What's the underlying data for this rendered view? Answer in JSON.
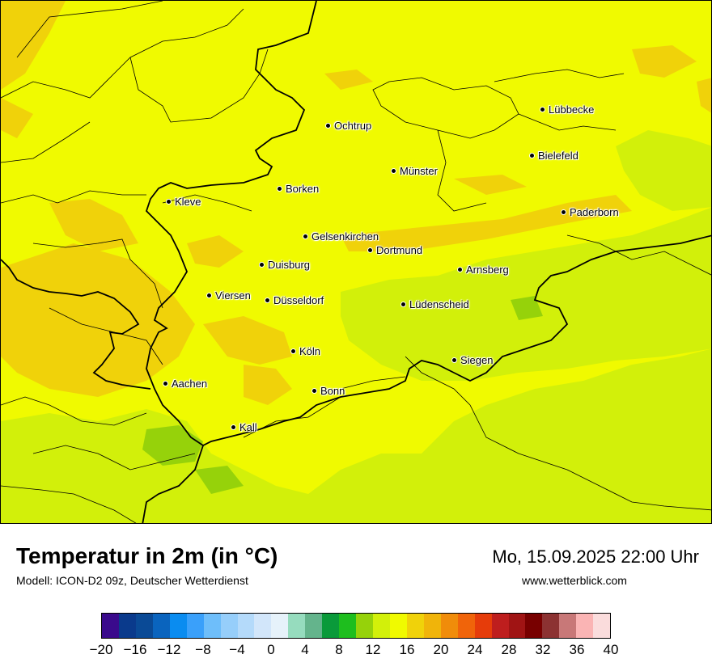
{
  "map": {
    "cities": [
      {
        "name": "Lübbecke"
      },
      {
        "name": "Ochtrup"
      },
      {
        "name": "Bielefeld"
      },
      {
        "name": "Münster"
      },
      {
        "name": "Borken"
      },
      {
        "name": "Kleve"
      },
      {
        "name": "Paderborn"
      },
      {
        "name": "Gelsenkirchen"
      },
      {
        "name": "Dortmund"
      },
      {
        "name": "Duisburg"
      },
      {
        "name": "Arnsberg"
      },
      {
        "name": "Viersen"
      },
      {
        "name": "Düsseldorf"
      },
      {
        "name": "Lüdenscheid"
      },
      {
        "name": "Köln"
      },
      {
        "name": "Siegen"
      },
      {
        "name": "Aachen"
      },
      {
        "name": "Bonn"
      },
      {
        "name": "Kall"
      }
    ]
  },
  "footer": {
    "title": "Temperatur in 2m (in °C)",
    "subtitle": "Modell: ICON-D2 09z, Deutscher Wetterdienst",
    "datetime": "Mo, 15.09.2025 22:00 Uhr",
    "url": "www.wetterblick.com"
  },
  "legend": {
    "colors": [
      "#3a0a8c",
      "#0a3a8c",
      "#0a4a96",
      "#0a64be",
      "#0a8cf0",
      "#3aa0fa",
      "#6ebefa",
      "#96cefa",
      "#b4dafa",
      "#d2e6fa",
      "#e6f2fa",
      "#96dcbe",
      "#64b48c",
      "#0a9a3a",
      "#1ebe1e",
      "#96d20a",
      "#d2f00a",
      "#f0fa00",
      "#f0d20a",
      "#f0b40a",
      "#f08c0a",
      "#f0640a",
      "#e63c0a",
      "#be1e1e",
      "#a01414",
      "#780000",
      "#8c3232",
      "#c87878",
      "#fab4b4",
      "#fadcdc"
    ],
    "ticks": [
      "−20",
      "−16",
      "−12",
      "−8",
      "−4",
      "0",
      "4",
      "8",
      "12",
      "16",
      "20",
      "24",
      "28",
      "32",
      "36",
      "40"
    ]
  }
}
